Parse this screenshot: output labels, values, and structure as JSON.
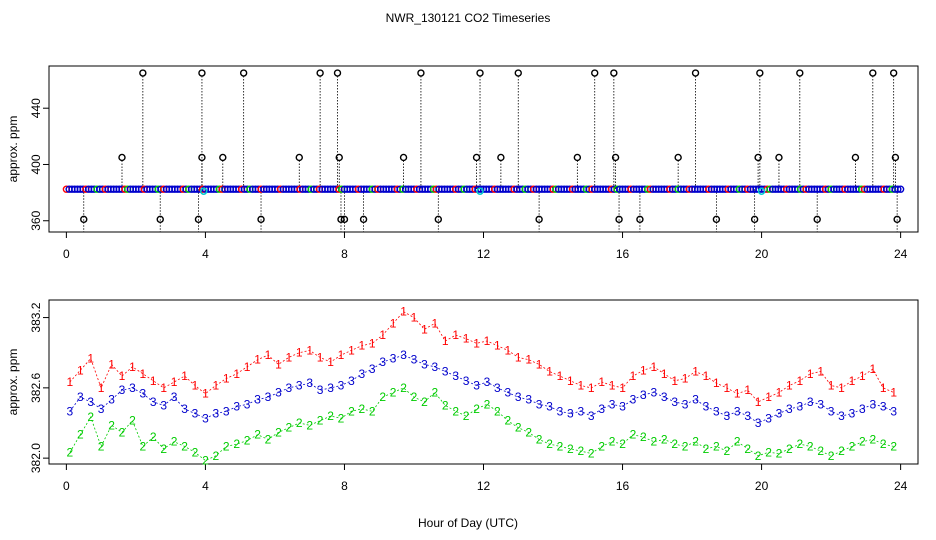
{
  "figure": {
    "title": "NWR_130121  CO2 Timeseries",
    "xlabel": "Hour of Day (UTC)"
  },
  "colors": {
    "axis": "#000000",
    "series_1": "#ff0000",
    "series_2": "#00cc00",
    "series_3": "#0000cc",
    "outlier": "#000000",
    "flagged": "#00cccc"
  },
  "chart_data": [
    {
      "type": "scatter",
      "name": "top-panel",
      "ylabel": "approx. ppm",
      "xlim": [
        -0.5,
        24.5
      ],
      "ylim": [
        352,
        470
      ],
      "xticks": [
        0,
        4,
        8,
        12,
        16,
        20,
        24
      ],
      "yticks": [
        360,
        400,
        440
      ],
      "baseline_ppm": 382.4,
      "outlier_levels": [
        361,
        405,
        465
      ],
      "outliers": [
        {
          "x": 0.5,
          "y": 361
        },
        {
          "x": 1.6,
          "y": 405
        },
        {
          "x": 2.2,
          "y": 465
        },
        {
          "x": 2.7,
          "y": 361
        },
        {
          "x": 3.8,
          "y": 361
        },
        {
          "x": 3.9,
          "y": 405
        },
        {
          "x": 3.9,
          "y": 465
        },
        {
          "x": 4.5,
          "y": 405
        },
        {
          "x": 5.1,
          "y": 465
        },
        {
          "x": 5.6,
          "y": 361
        },
        {
          "x": 6.7,
          "y": 405
        },
        {
          "x": 7.3,
          "y": 465
        },
        {
          "x": 7.8,
          "y": 465
        },
        {
          "x": 7.85,
          "y": 405
        },
        {
          "x": 7.9,
          "y": 361
        },
        {
          "x": 8.0,
          "y": 361
        },
        {
          "x": 8.55,
          "y": 361
        },
        {
          "x": 9.7,
          "y": 405
        },
        {
          "x": 10.2,
          "y": 465
        },
        {
          "x": 10.7,
          "y": 361
        },
        {
          "x": 11.8,
          "y": 405
        },
        {
          "x": 11.9,
          "y": 465
        },
        {
          "x": 12.5,
          "y": 405
        },
        {
          "x": 13.0,
          "y": 465
        },
        {
          "x": 13.6,
          "y": 361
        },
        {
          "x": 14.7,
          "y": 405
        },
        {
          "x": 15.2,
          "y": 465
        },
        {
          "x": 15.75,
          "y": 465
        },
        {
          "x": 15.8,
          "y": 405
        },
        {
          "x": 15.9,
          "y": 361
        },
        {
          "x": 16.5,
          "y": 361
        },
        {
          "x": 17.6,
          "y": 405
        },
        {
          "x": 18.1,
          "y": 465
        },
        {
          "x": 18.7,
          "y": 361
        },
        {
          "x": 19.8,
          "y": 361
        },
        {
          "x": 19.9,
          "y": 405
        },
        {
          "x": 19.95,
          "y": 465
        },
        {
          "x": 20.5,
          "y": 405
        },
        {
          "x": 21.1,
          "y": 465
        },
        {
          "x": 21.6,
          "y": 361
        },
        {
          "x": 22.7,
          "y": 405
        },
        {
          "x": 23.2,
          "y": 465
        },
        {
          "x": 23.8,
          "y": 465
        },
        {
          "x": 23.85,
          "y": 405
        },
        {
          "x": 23.9,
          "y": 361
        }
      ],
      "flagged_points": [
        {
          "x": 3.95,
          "y": 381
        },
        {
          "x": 11.9,
          "y": 381
        },
        {
          "x": 20.0,
          "y": 381
        }
      ]
    },
    {
      "type": "line",
      "name": "bottom-panel",
      "ylabel": "approx. ppm",
      "xlim": [
        -0.5,
        24.5
      ],
      "ylim": [
        381.95,
        383.35
      ],
      "xticks": [
        0,
        4,
        8,
        12,
        16,
        20,
        24
      ],
      "yticks": [
        382.0,
        382.6,
        383.2
      ],
      "yticklabels": [
        "382.0",
        "382.6",
        "383.2"
      ],
      "series": [
        {
          "name": "1",
          "marker": "1",
          "x": [
            0.1,
            0.4,
            0.7,
            1.0,
            1.3,
            1.6,
            1.9,
            2.2,
            2.5,
            2.8,
            3.1,
            3.4,
            3.7,
            4.0,
            4.3,
            4.6,
            4.9,
            5.2,
            5.5,
            5.8,
            6.1,
            6.4,
            6.7,
            7.0,
            7.3,
            7.6,
            7.9,
            8.2,
            8.5,
            8.8,
            9.1,
            9.4,
            9.7,
            10.0,
            10.3,
            10.6,
            10.9,
            11.2,
            11.5,
            11.8,
            12.1,
            12.4,
            12.7,
            13.0,
            13.3,
            13.6,
            13.9,
            14.2,
            14.5,
            14.8,
            15.1,
            15.4,
            15.7,
            16.0,
            16.3,
            16.6,
            16.9,
            17.2,
            17.5,
            17.8,
            18.1,
            18.4,
            18.7,
            19.0,
            19.3,
            19.6,
            19.9,
            20.2,
            20.5,
            20.8,
            21.1,
            21.4,
            21.7,
            22.0,
            22.3,
            22.6,
            22.9,
            23.2,
            23.5,
            23.8
          ],
          "values": [
            382.65,
            382.75,
            382.85,
            382.6,
            382.8,
            382.7,
            382.78,
            382.72,
            382.66,
            382.6,
            382.65,
            382.7,
            382.62,
            382.55,
            382.62,
            382.68,
            382.72,
            382.78,
            382.84,
            382.88,
            382.8,
            382.86,
            382.9,
            382.92,
            382.86,
            382.82,
            382.88,
            382.92,
            382.96,
            382.98,
            383.05,
            383.15,
            383.25,
            383.2,
            383.1,
            383.15,
            383.0,
            383.05,
            383.02,
            382.98,
            383.0,
            382.96,
            382.92,
            382.86,
            382.84,
            382.8,
            382.74,
            382.7,
            382.66,
            382.62,
            382.6,
            382.65,
            382.62,
            382.6,
            382.7,
            382.75,
            382.78,
            382.72,
            382.66,
            382.68,
            382.74,
            382.7,
            382.64,
            382.6,
            382.55,
            382.58,
            382.48,
            382.52,
            382.56,
            382.62,
            382.66,
            382.72,
            382.74,
            382.62,
            382.6,
            382.66,
            382.7,
            382.76,
            382.6,
            382.56
          ]
        },
        {
          "name": "2",
          "marker": "2",
          "x": [
            0.1,
            0.4,
            0.7,
            1.0,
            1.3,
            1.6,
            1.9,
            2.2,
            2.5,
            2.8,
            3.1,
            3.4,
            3.7,
            4.0,
            4.3,
            4.6,
            4.9,
            5.2,
            5.5,
            5.8,
            6.1,
            6.4,
            6.7,
            7.0,
            7.3,
            7.6,
            7.9,
            8.2,
            8.5,
            8.8,
            9.1,
            9.4,
            9.7,
            10.0,
            10.3,
            10.6,
            10.9,
            11.2,
            11.5,
            11.8,
            12.1,
            12.4,
            12.7,
            13.0,
            13.3,
            13.6,
            13.9,
            14.2,
            14.5,
            14.8,
            15.1,
            15.4,
            15.7,
            16.0,
            16.3,
            16.6,
            16.9,
            17.2,
            17.5,
            17.8,
            18.1,
            18.4,
            18.7,
            19.0,
            19.3,
            19.6,
            19.9,
            20.2,
            20.5,
            20.8,
            21.1,
            21.4,
            21.7,
            22.0,
            22.3,
            22.6,
            22.9,
            23.2,
            23.5,
            23.8
          ],
          "values": [
            382.05,
            382.2,
            382.35,
            382.1,
            382.28,
            382.22,
            382.32,
            382.1,
            382.18,
            382.08,
            382.14,
            382.1,
            382.05,
            381.98,
            382.02,
            382.1,
            382.12,
            382.15,
            382.2,
            382.16,
            382.22,
            382.26,
            382.3,
            382.28,
            382.32,
            382.36,
            382.34,
            382.4,
            382.42,
            382.4,
            382.52,
            382.56,
            382.6,
            382.52,
            382.48,
            382.56,
            382.45,
            382.4,
            382.36,
            382.42,
            382.46,
            382.4,
            382.32,
            382.26,
            382.22,
            382.16,
            382.12,
            382.1,
            382.08,
            382.06,
            382.04,
            382.1,
            382.14,
            382.12,
            382.2,
            382.18,
            382.14,
            382.16,
            382.12,
            382.1,
            382.14,
            382.08,
            382.1,
            382.06,
            382.14,
            382.08,
            382.02,
            382.05,
            382.04,
            382.08,
            382.12,
            382.1,
            382.06,
            382.02,
            382.06,
            382.1,
            382.14,
            382.16,
            382.12,
            382.1
          ]
        },
        {
          "name": "3",
          "marker": "3",
          "x": [
            0.1,
            0.4,
            0.7,
            1.0,
            1.3,
            1.6,
            1.9,
            2.2,
            2.5,
            2.8,
            3.1,
            3.4,
            3.7,
            4.0,
            4.3,
            4.6,
            4.9,
            5.2,
            5.5,
            5.8,
            6.1,
            6.4,
            6.7,
            7.0,
            7.3,
            7.6,
            7.9,
            8.2,
            8.5,
            8.8,
            9.1,
            9.4,
            9.7,
            10.0,
            10.3,
            10.6,
            10.9,
            11.2,
            11.5,
            11.8,
            12.1,
            12.4,
            12.7,
            13.0,
            13.3,
            13.6,
            13.9,
            14.2,
            14.5,
            14.8,
            15.1,
            15.4,
            15.7,
            16.0,
            16.3,
            16.6,
            16.9,
            17.2,
            17.5,
            17.8,
            18.1,
            18.4,
            18.7,
            19.0,
            19.3,
            19.6,
            19.9,
            20.2,
            20.5,
            20.8,
            21.1,
            21.4,
            21.7,
            22.0,
            22.3,
            22.6,
            22.9,
            23.2,
            23.5,
            23.8
          ],
          "values": [
            382.4,
            382.52,
            382.48,
            382.42,
            382.5,
            382.58,
            382.6,
            382.55,
            382.48,
            382.45,
            382.52,
            382.42,
            382.38,
            382.34,
            382.38,
            382.4,
            382.44,
            382.46,
            382.5,
            382.52,
            382.56,
            382.6,
            382.62,
            382.64,
            382.58,
            382.6,
            382.62,
            382.66,
            382.72,
            382.76,
            382.82,
            382.85,
            382.88,
            382.84,
            382.8,
            382.78,
            382.74,
            382.7,
            382.66,
            382.62,
            382.65,
            382.6,
            382.56,
            382.52,
            382.5,
            382.46,
            382.44,
            382.4,
            382.38,
            382.4,
            382.36,
            382.42,
            382.46,
            382.44,
            382.5,
            382.54,
            382.56,
            382.52,
            382.48,
            382.46,
            382.5,
            382.44,
            382.4,
            382.36,
            382.4,
            382.36,
            382.3,
            382.34,
            382.38,
            382.42,
            382.44,
            382.48,
            382.46,
            382.4,
            382.36,
            382.38,
            382.42,
            382.46,
            382.44,
            382.4
          ]
        }
      ]
    }
  ]
}
